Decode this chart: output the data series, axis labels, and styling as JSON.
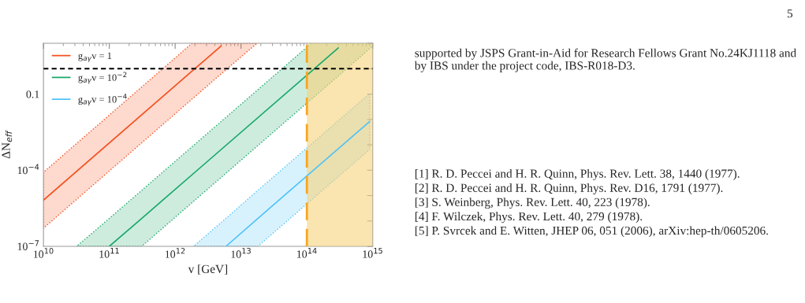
{
  "chart_data": {
    "type": "line",
    "xlabel": "v [GeV]",
    "ylabel": "ΔN$_{eff}$",
    "log": "xy",
    "xlim": [
      10000000000.0,
      1000000000000000.0
    ],
    "ylim": [
      1e-07,
      10
    ],
    "xticks": [
      {
        "value": 10000000000.0,
        "label": "10$^{10}$"
      },
      {
        "value": 100000000000.0,
        "label": "10$^{11}$"
      },
      {
        "value": 1000000000000.0,
        "label": "10$^{12}$"
      },
      {
        "value": 10000000000000.0,
        "label": "10$^{13}$"
      },
      {
        "value": 100000000000000.0,
        "label": "10$^{14}$"
      },
      {
        "value": 1000000000000000.0,
        "label": "10$^{15}$"
      }
    ],
    "yticks": [
      {
        "value": 1e-07,
        "label": "10$^{−7}$"
      },
      {
        "value": 1e-06,
        "label": null
      },
      {
        "value": 1e-05,
        "label": null
      },
      {
        "value": 0.0001,
        "label": "10$^{−4}$"
      },
      {
        "value": 0.001,
        "label": null
      },
      {
        "value": 0.01,
        "label": null
      },
      {
        "value": 0.1,
        "label": "0.1"
      },
      {
        "value": 1,
        "label": null
      },
      {
        "value": 10,
        "label": null
      }
    ],
    "series": [
      {
        "name": "g$_{aγ}$v = 1",
        "color": "#f4511e",
        "x": [
          10000000000.0,
          1800000000000.0,
          5000000000000.0,
          17500000000000.0
        ],
        "values": [
          6.6e-06,
          0.8,
          7.9,
          null
        ],
        "lower": [
          5.2e-07,
          0.063,
          0.63,
          10
        ],
        "upper": [
          8.3e-05,
          10,
          10,
          10
        ]
      },
      {
        "name": "g$_{aγ}$v = 10$^{−2}$",
        "color": "#1aa86a",
        "x": [
          32000000000.0,
          100000000000.0,
          310000000000.0,
          117000000000000.0,
          300000000000000.0,
          1000000000000000.0
        ],
        "values": [
          null,
          1e-07,
          1.26e-06,
          0.79,
          6.6,
          null
        ],
        "lower": [
          1e-07,
          1e-07,
          1e-07,
          0.063,
          0.52,
          7.9
        ],
        "upper": [
          1e-07,
          1.26e-06,
          1.6e-05,
          10,
          10,
          10
        ]
      },
      {
        "name": "g$_{aγ}$v = 10$^{−4}$",
        "color": "#4fc3f7",
        "x": [
          1900000000000.0,
          5900000000000.0,
          18000000000000.0,
          900000000000000.0
        ],
        "values": [
          null,
          1e-07,
          1.26e-06,
          0.0083
        ],
        "lower": [
          1e-07,
          1e-07,
          1e-07,
          0.00066
        ],
        "upper": [
          1e-07,
          1.26e-06,
          1.6e-05,
          0.105
        ]
      }
    ],
    "ref_lines": [
      {
        "axis": "y",
        "value": 1,
        "color": "#000000",
        "line_style": "dashed"
      },
      {
        "axis": "x",
        "value": 100000000000000.0,
        "color": "#f5a623",
        "line_style": "dashed"
      }
    ],
    "bands": [
      {
        "axis": "x",
        "from": 100000000000000.0,
        "to": 1000000000000000.0,
        "color": "#f7d27a"
      }
    ],
    "legend": "top left",
    "grid": false,
    "line_style": "solid",
    "marker": "none",
    "annotations": [
      "5",
      "supported by JSPS Grant-in-Aid for Research Fellows Grant No.24KJ1118 and by IBS under the project code, IBS-R018-D3.",
      "[1] R. D. Peccei and H. R. Quinn, Phys. Rev. Lett. 38, 1440 (1977).",
      "[2] R. D. Peccei and H. R. Quinn, Phys. Rev. D16, 1791 (1977).",
      "[3] S. Weinberg, Phys. Rev. Lett. 40, 223 (1978).",
      "[4] F. Wilczek, Phys. Rev. Lett. 40, 279 (1978).",
      "[5] P. Svrcek and E. Witten, JHEP 06, 051 (2006), arXiv:hep-th/0605206."
    ]
  }
}
